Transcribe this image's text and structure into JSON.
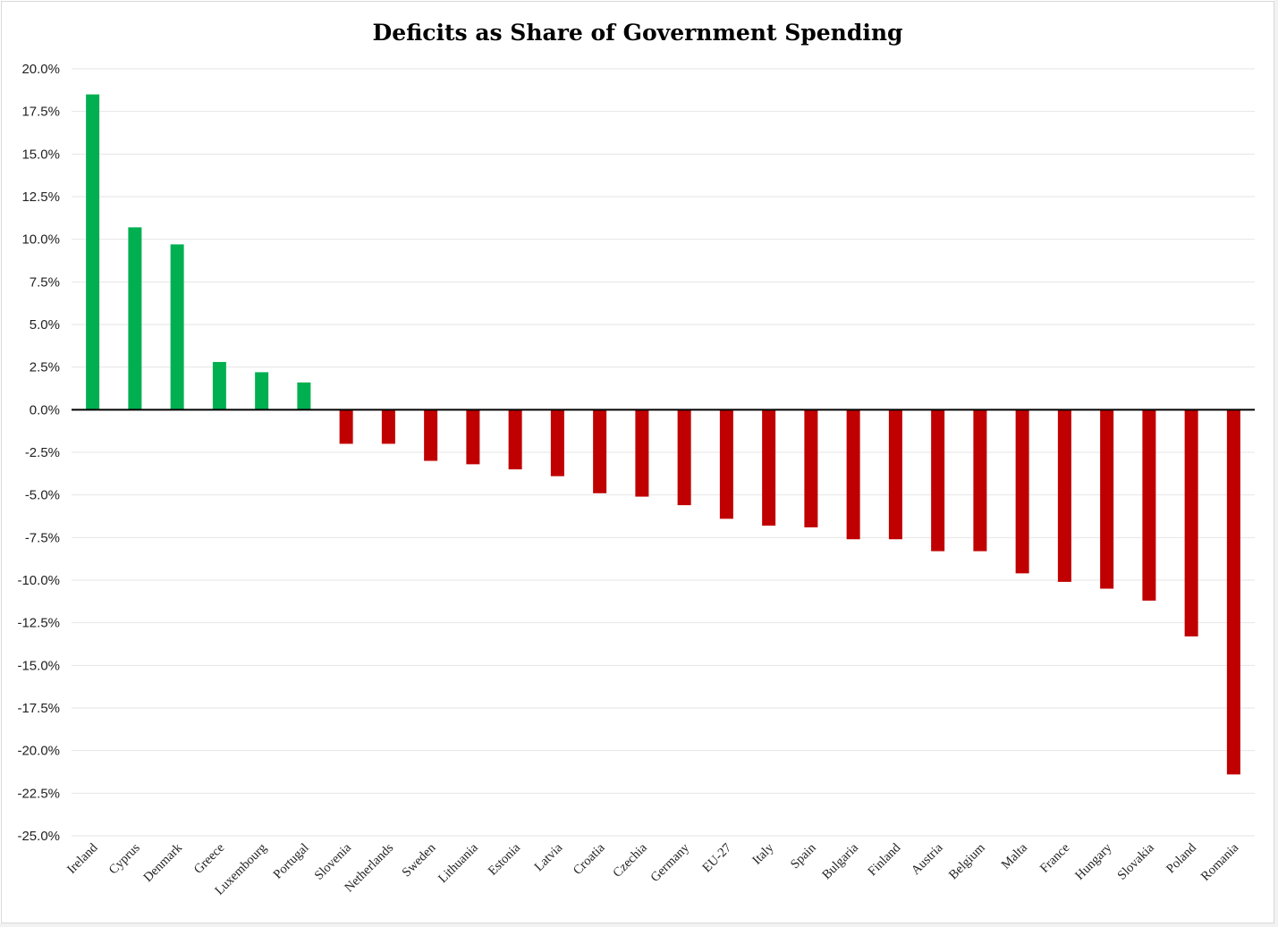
{
  "chart_data": {
    "type": "bar",
    "title": "Deficits as Share of Government Spending",
    "xlabel": "",
    "ylabel": "",
    "ylim": [
      -25.0,
      20.0
    ],
    "y_tick_step": 2.5,
    "y_tick_format": "percent_1dp",
    "grid": true,
    "legend": "none",
    "colors": {
      "positive": "#00b050",
      "negative": "#c00000"
    },
    "categories": [
      "Ireland",
      "Cyprus",
      "Denmark",
      "Greece",
      "Luxembourg",
      "Portugal",
      "Slovenia",
      "Netherlands",
      "Sweden",
      "Lithuania",
      "Estonia",
      "Latvia",
      "Croatia",
      "Czechia",
      "Germany",
      "EU-27",
      "Italy",
      "Spain",
      "Bulgaria",
      "Finland",
      "Austria",
      "Belgium",
      "Malta",
      "France",
      "Hungary",
      "Slovakia",
      "Poland",
      "Romania"
    ],
    "values": [
      18.5,
      10.7,
      9.7,
      2.8,
      2.2,
      1.6,
      -2.0,
      -2.0,
      -3.0,
      -3.2,
      -3.5,
      -3.9,
      -4.9,
      -5.1,
      -5.6,
      -6.4,
      -6.8,
      -6.9,
      -7.6,
      -7.6,
      -8.3,
      -8.3,
      -9.6,
      -10.1,
      -10.5,
      -11.2,
      -13.3,
      -21.4
    ],
    "y_ticks": [
      "20.0%",
      "17.5%",
      "15.0%",
      "12.5%",
      "10.0%",
      "7.5%",
      "5.0%",
      "2.5%",
      "0.0%",
      "-2.5%",
      "-5.0%",
      "-7.5%",
      "-10.0%",
      "-12.5%",
      "-15.0%",
      "-17.5%",
      "-20.0%",
      "-22.5%",
      "-25.0%"
    ]
  }
}
